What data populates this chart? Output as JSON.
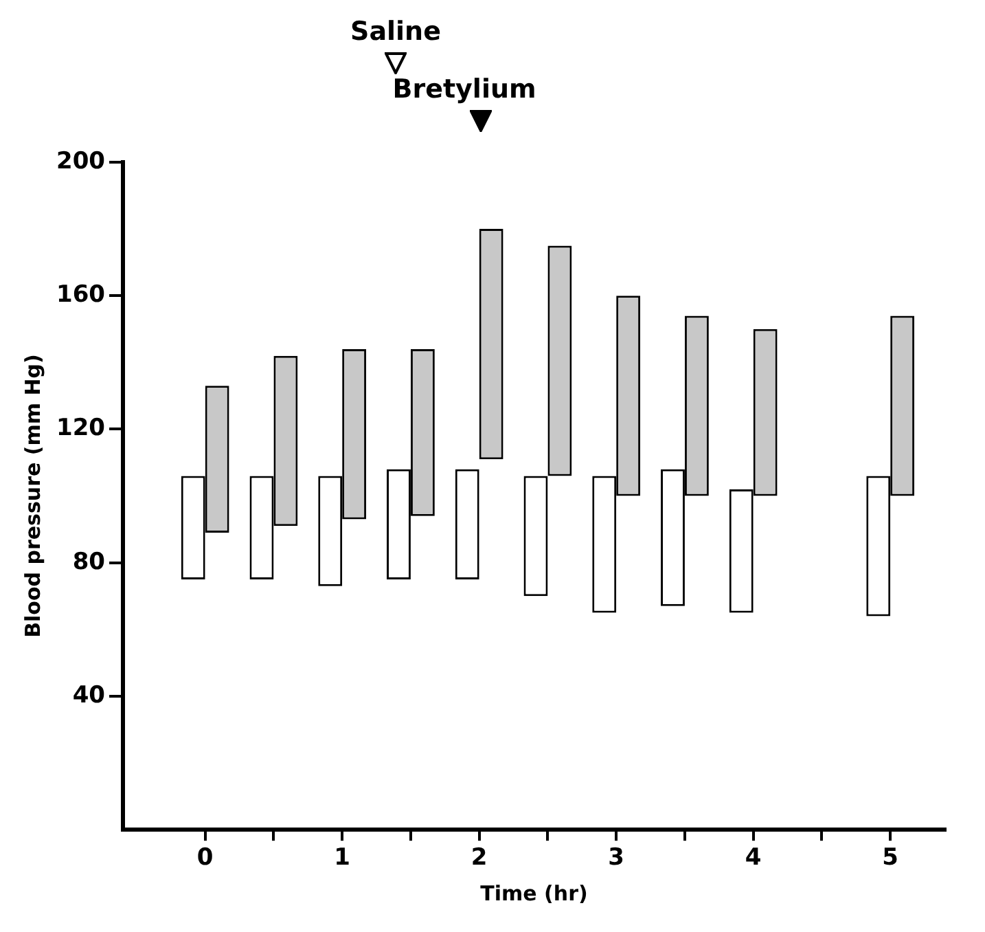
{
  "chart_data": {
    "type": "bar",
    "xlabel": "Time (hr)",
    "ylabel": "Blood pressure (mm Hg)",
    "x": [
      0,
      0.5,
      1,
      1.5,
      2,
      2.5,
      3,
      3.5,
      4,
      5
    ],
    "series": [
      {
        "color": "#ffffff",
        "base": [
          75,
          75,
          73,
          75,
          75,
          70,
          65,
          67,
          65,
          64
        ],
        "values": [
          31,
          31,
          33,
          33,
          33,
          36,
          41,
          41,
          37,
          42
        ]
      },
      {
        "color": "#c8c8c8",
        "base": [
          89,
          91,
          93,
          94,
          111,
          106,
          100,
          100,
          100,
          100
        ],
        "values": [
          44,
          51,
          51,
          50,
          69,
          69,
          60,
          54,
          50,
          54
        ]
      }
    ],
    "xlim": [
      -0.6,
      5.4
    ],
    "xticks": [
      0,
      {
        "value": 0.5,
        "label": null
      },
      1,
      {
        "value": 1.5,
        "label": null
      },
      2,
      {
        "value": 2.5,
        "label": null
      },
      3,
      {
        "value": 3.5,
        "label": null
      },
      4,
      {
        "value": 4.5,
        "label": null
      },
      5
    ],
    "ylim": [
      0,
      200
    ],
    "yticks": [
      40,
      80,
      120,
      160,
      200
    ],
    "annotations": [
      "Saline",
      "Bretylium"
    ],
    "grid": false
  }
}
